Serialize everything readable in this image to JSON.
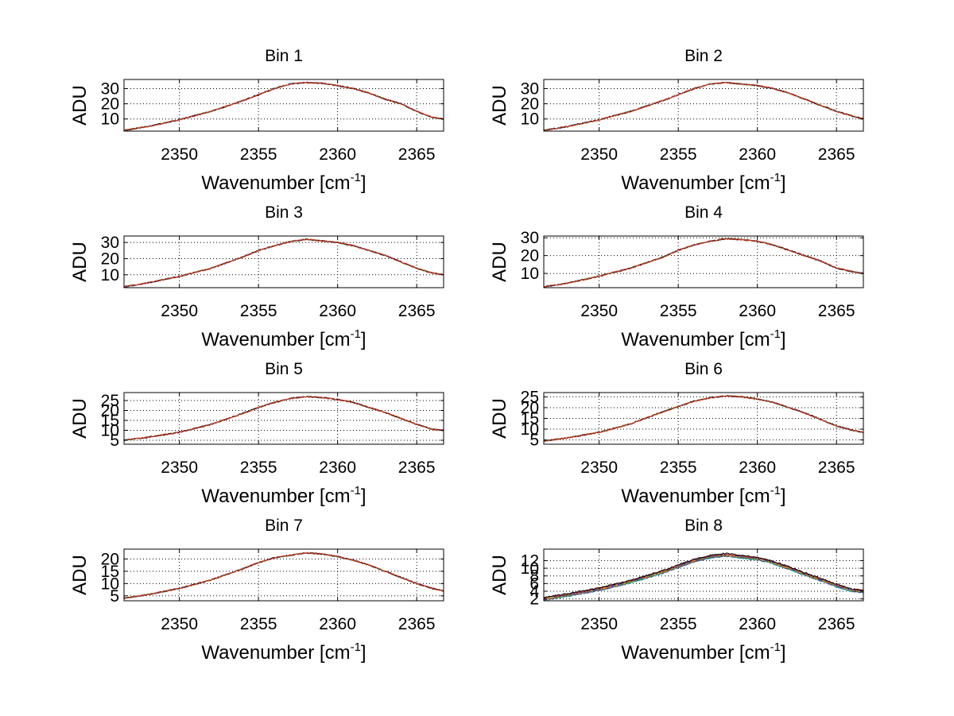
{
  "chart_data": {
    "type": "line",
    "layout": "4x2 subplots",
    "xlabel": "Wavenumber [cm",
    "xlabel_superscript": "-1",
    "xlabel_close": "]",
    "ylabel": "ADU",
    "xlim": [
      2346.5,
      2366.7
    ],
    "xticks": [
      2350,
      2355,
      2360,
      2365
    ],
    "grid": "dotted",
    "subplots": [
      {
        "title": "Bin 1",
        "ylim": [
          2,
          36
        ],
        "yticks": [
          10,
          20,
          30
        ],
        "x": [
          2346.5,
          2348,
          2350,
          2352,
          2354,
          2355,
          2356,
          2357,
          2358,
          2359,
          2360,
          2361,
          2362,
          2363,
          2364,
          2365,
          2366,
          2366.7
        ],
        "y": [
          2.5,
          5,
          9.5,
          15,
          22,
          26,
          30,
          33,
          34,
          33.5,
          32,
          30,
          27,
          23,
          20,
          15,
          11,
          10
        ]
      },
      {
        "title": "Bin 2",
        "ylim": [
          2,
          36
        ],
        "yticks": [
          10,
          20,
          30
        ],
        "x": [
          2346.5,
          2348,
          2350,
          2352,
          2354,
          2355,
          2356,
          2357,
          2358,
          2359,
          2360,
          2361,
          2362,
          2363,
          2364,
          2365,
          2366,
          2366.7
        ],
        "y": [
          2.5,
          5,
          9.5,
          15,
          22,
          26,
          30,
          33,
          34,
          33,
          32,
          30,
          27,
          23,
          19,
          15,
          12,
          10
        ]
      },
      {
        "title": "Bin 3",
        "ylim": [
          2,
          34
        ],
        "yticks": [
          10,
          20,
          30
        ],
        "x": [
          2346.5,
          2348,
          2350,
          2352,
          2354,
          2355,
          2356,
          2357,
          2358,
          2359,
          2360,
          2361,
          2362,
          2363,
          2364,
          2365,
          2366,
          2366.7
        ],
        "y": [
          2.5,
          5,
          9,
          14,
          21,
          25,
          28,
          30.5,
          32,
          31,
          30,
          28,
          25,
          22,
          18,
          14,
          11,
          10
        ]
      },
      {
        "title": "Bin 4",
        "ylim": [
          2,
          31
        ],
        "yticks": [
          10,
          20,
          30
        ],
        "x": [
          2346.5,
          2348,
          2350,
          2352,
          2354,
          2355,
          2356,
          2357,
          2358,
          2359,
          2360,
          2361,
          2362,
          2363,
          2364,
          2365,
          2366,
          2366.7
        ],
        "y": [
          2.5,
          4.5,
          8.5,
          13,
          19,
          23,
          26,
          28,
          29.5,
          29,
          28,
          26,
          23,
          20,
          17,
          13,
          11,
          10
        ]
      },
      {
        "title": "Bin 5",
        "ylim": [
          3,
          29
        ],
        "yticks": [
          5,
          10,
          15,
          20,
          25
        ],
        "x": [
          2346.5,
          2348,
          2350,
          2352,
          2354,
          2355,
          2356,
          2357,
          2358,
          2359,
          2360,
          2361,
          2362,
          2363,
          2364,
          2365,
          2366,
          2366.7
        ],
        "y": [
          5,
          6.5,
          9,
          13,
          18.5,
          21.5,
          24,
          26,
          27,
          26.5,
          25.5,
          24,
          21.5,
          19,
          16,
          13,
          10.5,
          10
        ]
      },
      {
        "title": "Bin 6",
        "ylim": [
          3,
          27
        ],
        "yticks": [
          5,
          10,
          15,
          20,
          25
        ],
        "x": [
          2346.5,
          2348,
          2350,
          2352,
          2354,
          2355,
          2356,
          2357,
          2358,
          2359,
          2360,
          2361,
          2362,
          2363,
          2364,
          2365,
          2366,
          2366.7
        ],
        "y": [
          4.5,
          6,
          8.5,
          12.5,
          18,
          20.5,
          23,
          24.5,
          25.5,
          25,
          24,
          22.5,
          20,
          17.5,
          14.5,
          11.5,
          9.5,
          8.5
        ]
      },
      {
        "title": "Bin 7",
        "ylim": [
          3,
          24
        ],
        "yticks": [
          5,
          10,
          15,
          20
        ],
        "x": [
          2346.5,
          2348,
          2350,
          2352,
          2354,
          2355,
          2356,
          2357,
          2358,
          2359,
          2360,
          2361,
          2362,
          2363,
          2364,
          2365,
          2366,
          2366.7
        ],
        "y": [
          4,
          5.5,
          8,
          11.5,
          16,
          18.5,
          20.5,
          21.5,
          22.5,
          22,
          21,
          19.5,
          17.5,
          15,
          12.5,
          10,
          8,
          7
        ]
      },
      {
        "title": "Bin 8",
        "ylim": [
          1.5,
          15
        ],
        "yticks": [
          2,
          4,
          6,
          8,
          10,
          12
        ],
        "x": [
          2346.5,
          2348,
          2350,
          2352,
          2354,
          2355,
          2356,
          2357,
          2358,
          2359,
          2360,
          2361,
          2362,
          2363,
          2364,
          2365,
          2366,
          2366.7
        ],
        "y": [
          2,
          3,
          4.5,
          6.5,
          9,
          10.5,
          12,
          13,
          13.5,
          13,
          12.5,
          11.5,
          10,
          8.5,
          7,
          5.5,
          4.2,
          4
        ]
      }
    ],
    "series_colors": [
      "#e3391c",
      "#1f1fd6",
      "#2a9a2a",
      "#7a1a7a",
      "#19b3c9",
      "#d9a400",
      "#000000"
    ]
  }
}
